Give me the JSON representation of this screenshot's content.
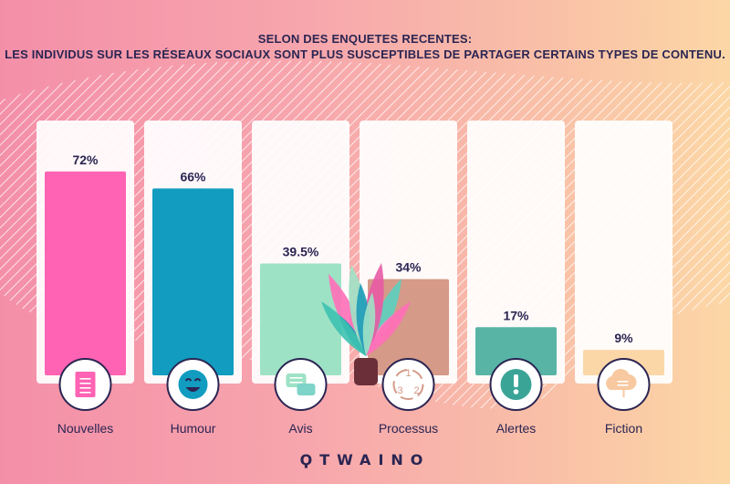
{
  "header": {
    "title_line1": "SELON DES ENQUETES RECENTES:",
    "title_line2": "LES INDIVIDUS SUR LES RÉSEAUX SOCIAUX SONT PLUS SUSCEPTIBLES DE PARTAGER CERTAINS TYPES DE CONTENU."
  },
  "chart_data": {
    "type": "bar",
    "title": "SELON DES ENQUETES RECENTES: LES INDIVIDUS SUR LES RÉSEAUX SOCIAUX SONT PLUS SUSCEPTIBLES DE PARTAGER CERTAINS TYPES DE CONTENU.",
    "categories": [
      "Nouvelles",
      "Humour",
      "Avis",
      "Processus",
      "Alertes",
      "Fiction"
    ],
    "values": [
      72,
      66,
      39.5,
      34,
      17,
      9
    ],
    "value_labels": [
      "72%",
      "66%",
      "39.5%",
      "34%",
      "17%",
      "9%"
    ],
    "colors": [
      "#ff63b3",
      "#119cc0",
      "#9ee2c5",
      "#d59a88",
      "#58b5a6",
      "#fbd7a8"
    ],
    "icons": [
      "document-icon",
      "smiley-face-icon",
      "chat-bubbles-icon",
      "cycle-steps-icon",
      "exclamation-icon",
      "cloud-icon"
    ],
    "icon_colors": [
      "#ff63b3",
      "#119cc0",
      "#9ee2c5",
      "#d59a88",
      "#3aa597",
      "#f8c9a0"
    ],
    "ylim": [
      0,
      100
    ],
    "grid": false,
    "legend": "none"
  },
  "logo": {
    "text": "ϘTWAINO"
  }
}
